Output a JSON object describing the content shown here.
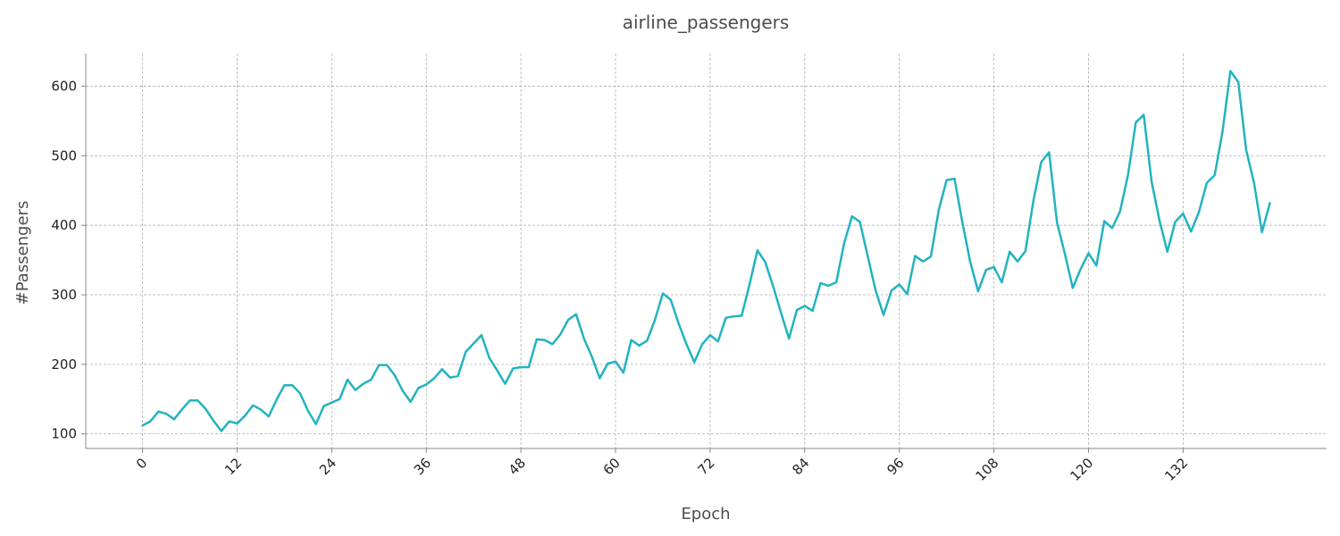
{
  "chart_data": {
    "type": "line",
    "title": "airline_passengers",
    "xlabel": "Epoch",
    "ylabel": "#Passengers",
    "xlim": [
      -7.2,
      150.2
    ],
    "ylim": [
      79,
      647
    ],
    "grid": true,
    "x_ticks": [
      0,
      12,
      24,
      36,
      48,
      60,
      72,
      84,
      96,
      108,
      120,
      132
    ],
    "y_ticks": [
      100,
      200,
      300,
      400,
      500,
      600
    ],
    "series": [
      {
        "color": "#22b3bf",
        "values": [
          112,
          118,
          132,
          129,
          121,
          135,
          148,
          148,
          136,
          119,
          104,
          118,
          115,
          126,
          141,
          135,
          125,
          149,
          170,
          170,
          158,
          133,
          114,
          140,
          145,
          150,
          178,
          163,
          172,
          178,
          199,
          199,
          184,
          162,
          146,
          166,
          171,
          180,
          193,
          181,
          183,
          218,
          230,
          242,
          209,
          191,
          172,
          194,
          196,
          196,
          236,
          235,
          229,
          243,
          264,
          272,
          237,
          211,
          180,
          201,
          204,
          188,
          235,
          227,
          234,
          264,
          302,
          293,
          259,
          229,
          203,
          229,
          242,
          233,
          267,
          269,
          270,
          315,
          364,
          347,
          312,
          274,
          237,
          278,
          284,
          277,
          317,
          313,
          318,
          374,
          413,
          405,
          355,
          306,
          271,
          306,
          315,
          301,
          356,
          348,
          355,
          422,
          465,
          467,
          404,
          347,
          305,
          336,
          340,
          318,
          362,
          348,
          363,
          435,
          491,
          505,
          404,
          359,
          310,
          337,
          360,
          342,
          406,
          396,
          420,
          472,
          548,
          559,
          463,
          407,
          362,
          405,
          417,
          391,
          419,
          461,
          472,
          535,
          622,
          606,
          508,
          461,
          390,
          432
        ]
      }
    ]
  }
}
